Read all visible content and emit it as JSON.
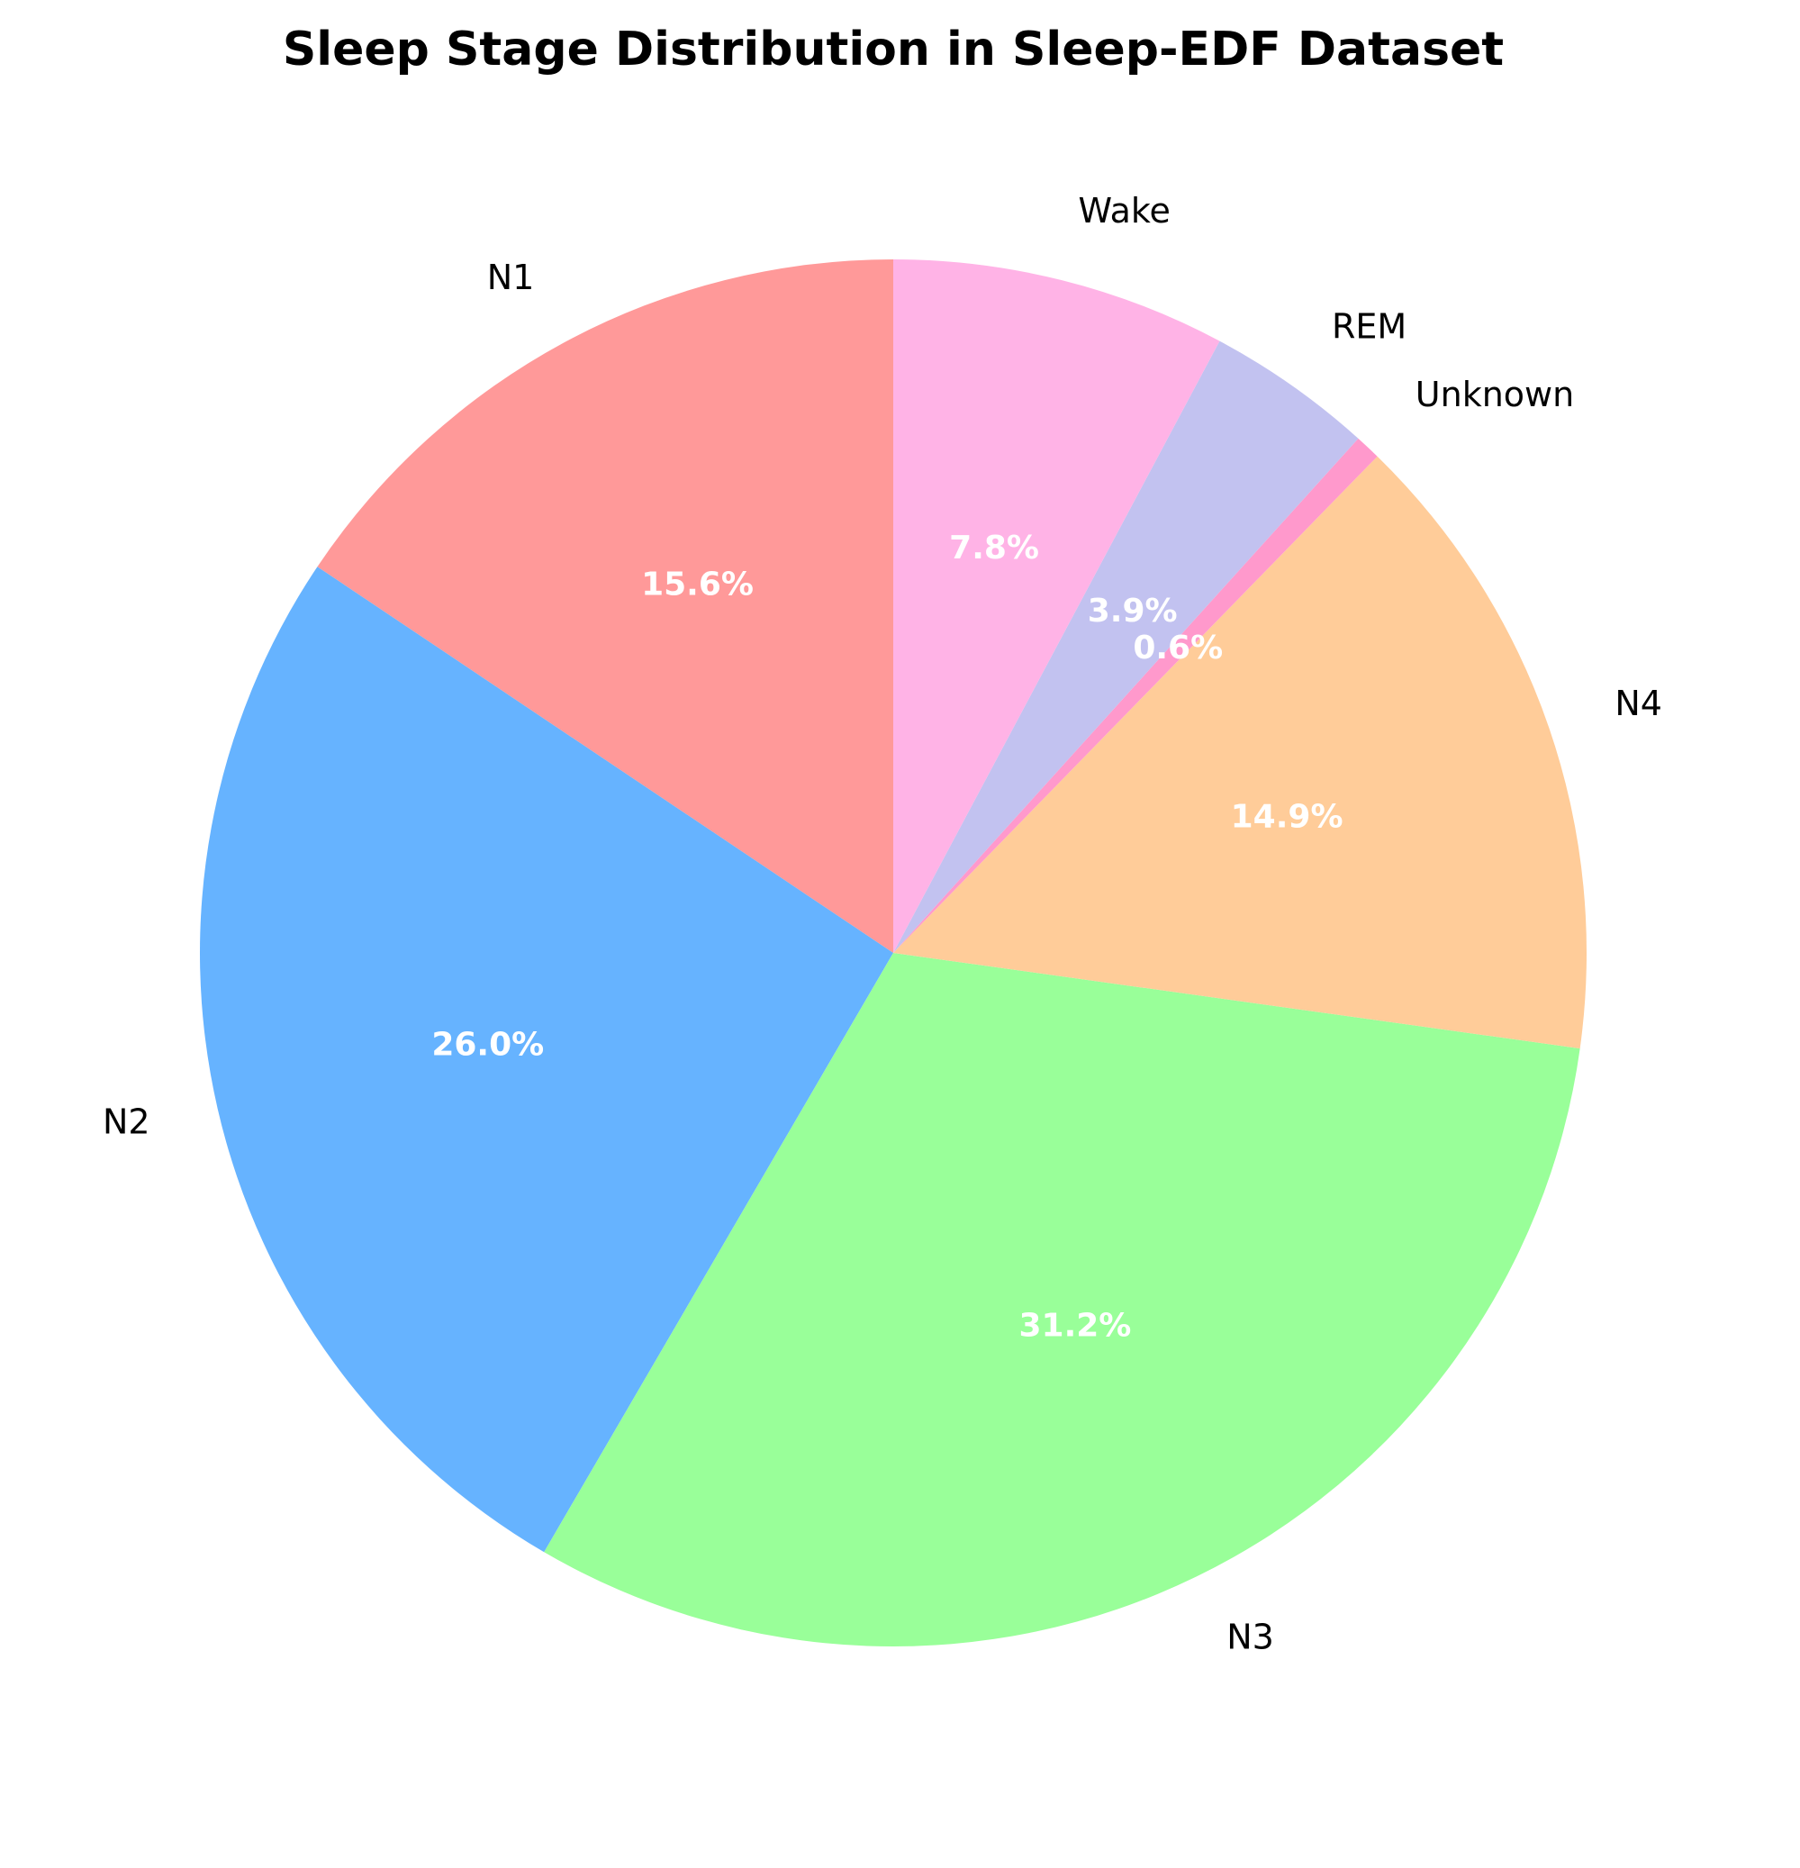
{
  "chart_data": {
    "type": "pie",
    "title": "Sleep Stage Distribution in Sleep-EDF Dataset",
    "categories": [
      "N1",
      "N2",
      "N3",
      "N4",
      "Unknown",
      "REM",
      "Wake"
    ],
    "values": [
      15.6,
      26.0,
      31.2,
      14.9,
      0.6,
      3.9,
      7.8
    ],
    "value_labels": [
      "15.6%",
      "26.0%",
      "31.2%",
      "14.9%",
      "0.6%",
      "3.9%",
      "7.8%"
    ],
    "colors": [
      "#ff9999",
      "#66b3ff",
      "#99ff99",
      "#ffcc99",
      "#ff99cc",
      "#c2c2f0",
      "#ffb3e6"
    ],
    "start_angle_deg": 90,
    "direction": "counterclockwise",
    "legend": "none"
  }
}
